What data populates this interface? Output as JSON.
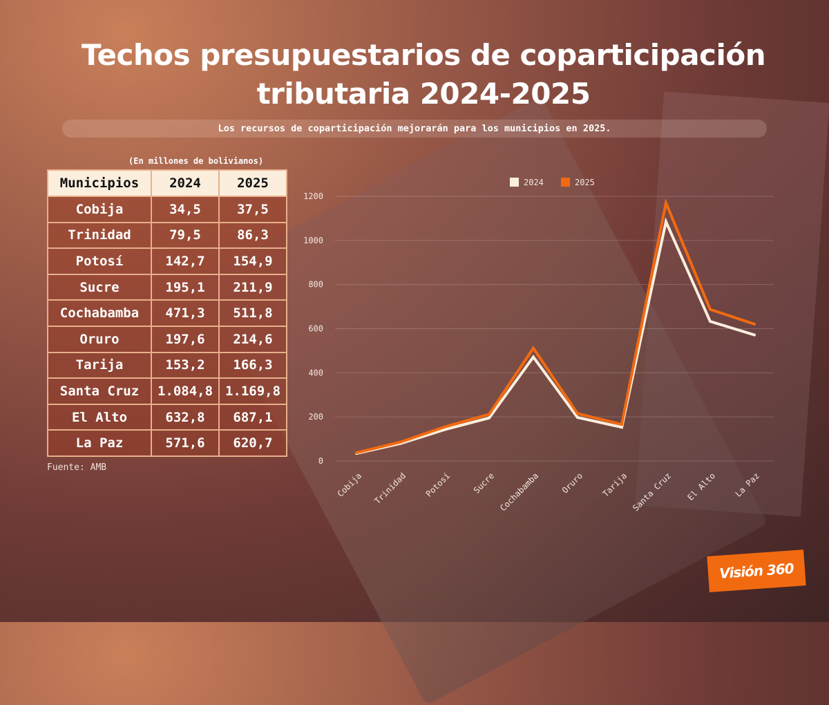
{
  "title": "Techos presupuestarios de coparticipación tributaria 2024-2025",
  "subtitle": "Los recursos de coparticipación mejorarán para los municipios en 2025.",
  "unit_note": "(En millones de bolivianos)",
  "source": "Fuente: AMB",
  "logo": "Visión 360",
  "table": {
    "headers": [
      "Municipios",
      "2024",
      "2025"
    ],
    "rows": [
      [
        "Cobija",
        "34,5",
        "37,5"
      ],
      [
        "Trinidad",
        "79,5",
        "86,3"
      ],
      [
        "Potosí",
        "142,7",
        "154,9"
      ],
      [
        "Sucre",
        "195,1",
        "211,9"
      ],
      [
        "Cochabamba",
        "471,3",
        "511,8"
      ],
      [
        "Oruro",
        "197,6",
        "214,6"
      ],
      [
        "Tarija",
        "153,2",
        "166,3"
      ],
      [
        "Santa Cruz",
        "1.084,8",
        "1.169,8"
      ],
      [
        "El Alto",
        "632,8",
        "687,1"
      ],
      [
        "La Paz",
        "571,6",
        "620,7"
      ]
    ]
  },
  "chart_data": {
    "type": "line",
    "categories": [
      "Cobija",
      "Trinidad",
      "Potosí",
      "Sucre",
      "Cochabamba",
      "Oruro",
      "Tarija",
      "Santa Cruz",
      "El Alto",
      "La Paz"
    ],
    "series": [
      {
        "name": "2024",
        "color": "#fbeedd",
        "values": [
          34.5,
          79.5,
          142.7,
          195.1,
          471.3,
          197.6,
          153.2,
          1084.8,
          632.8,
          571.6
        ]
      },
      {
        "name": "2025",
        "color": "#f26a10",
        "values": [
          37.5,
          86.3,
          154.9,
          211.9,
          511.8,
          214.6,
          166.3,
          1169.8,
          687.1,
          620.7
        ]
      }
    ],
    "yticks": [
      0,
      200,
      400,
      600,
      800,
      1000,
      1200
    ],
    "ylim": [
      0,
      1200
    ],
    "grid": true,
    "legend": "top"
  }
}
